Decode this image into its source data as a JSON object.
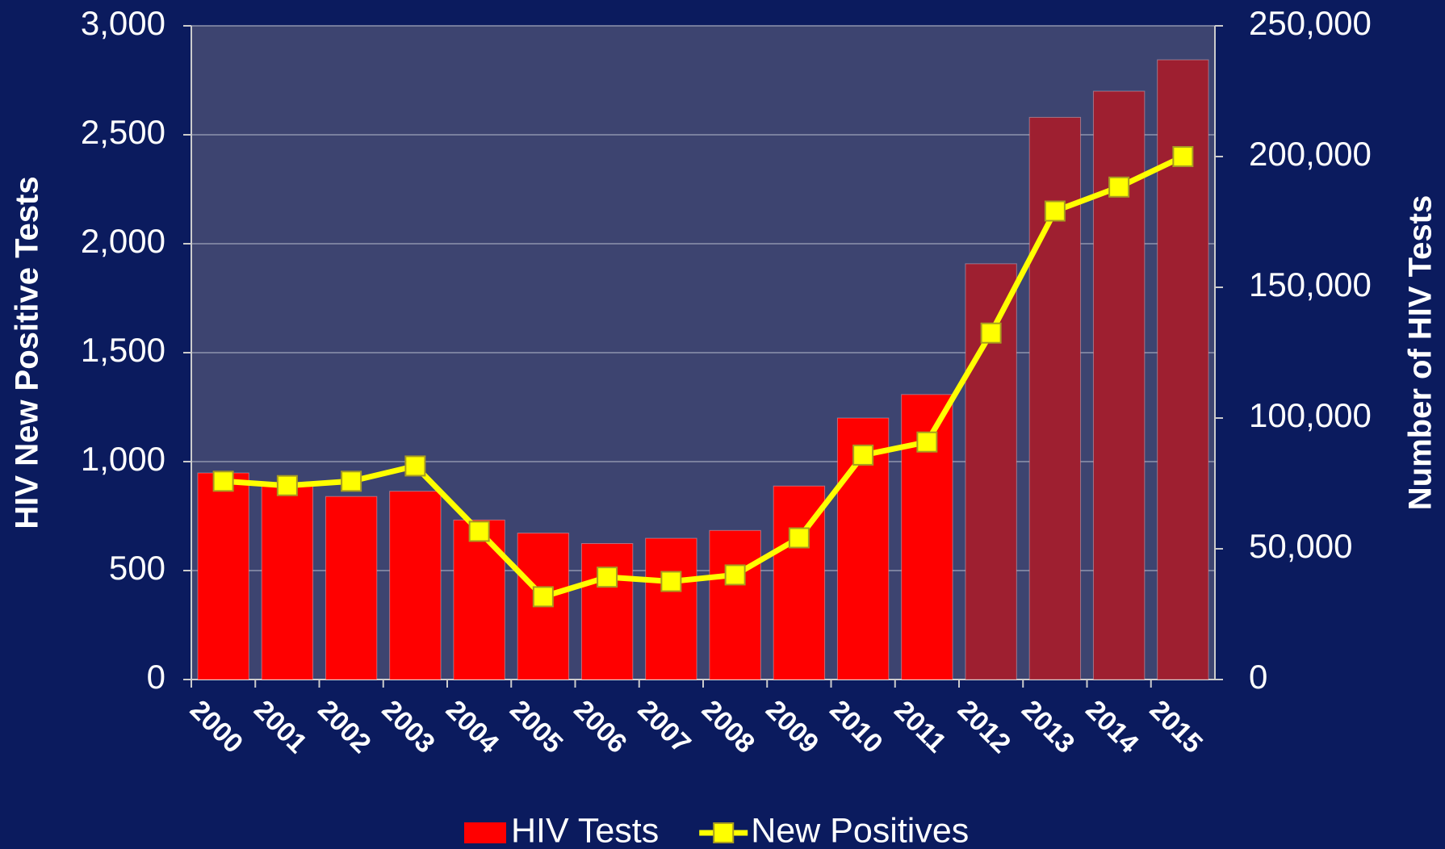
{
  "chart_data": {
    "type": "combo",
    "categories": [
      "2000",
      "2001",
      "2002",
      "2003",
      "2004",
      "2005",
      "2006",
      "2007",
      "2008",
      "2009",
      "2010",
      "2011",
      "2012",
      "2013",
      "2014",
      "2015"
    ],
    "series": [
      {
        "name": "HIV Tests",
        "type": "bar",
        "axis": "y2",
        "color": "#ff0000",
        "colors": [
          "#ff0000",
          "#ff0000",
          "#ff0000",
          "#ff0000",
          "#ff0000",
          "#ff0000",
          "#ff0000",
          "#ff0000",
          "#ff0000",
          "#ff0000",
          "#ff0000",
          "#ff0000",
          "#9e1f30",
          "#9e1f30",
          "#9e1f30",
          "#9e1f30"
        ],
        "values": [
          79000,
          75000,
          70000,
          72000,
          61000,
          56000,
          52000,
          54000,
          57000,
          74000,
          100000,
          109000,
          159000,
          215000,
          225000,
          237000
        ]
      },
      {
        "name": "New Positives",
        "type": "line",
        "axis": "y",
        "color": "#ffff00",
        "values": [
          910,
          890,
          910,
          980,
          680,
          380,
          470,
          450,
          480,
          650,
          1030,
          1090,
          1590,
          2150,
          2260,
          2400
        ]
      }
    ],
    "ylabel": "HIV New Positive Tests",
    "y2label": "Number of HIV Tests",
    "ylim": [
      0,
      3000
    ],
    "yticks": [
      0,
      500,
      {
        "value": 1000,
        "label": "1,000"
      },
      {
        "value": 1500,
        "label": "1,500"
      },
      {
        "value": 2000,
        "label": "2,000"
      },
      {
        "value": 2500,
        "label": "2,500"
      },
      {
        "value": 3000,
        "label": "3,000"
      }
    ],
    "y2lim": [
      0,
      250000
    ],
    "y2ticks": [
      0,
      {
        "value": 50000,
        "label": "50,000"
      },
      {
        "value": 100000,
        "label": "100,000"
      },
      {
        "value": 150000,
        "label": "150,000"
      },
      {
        "value": 200000,
        "label": "200,000"
      },
      {
        "value": 250000,
        "label": "250,000"
      }
    ],
    "grid": true,
    "legend": "bottom"
  }
}
